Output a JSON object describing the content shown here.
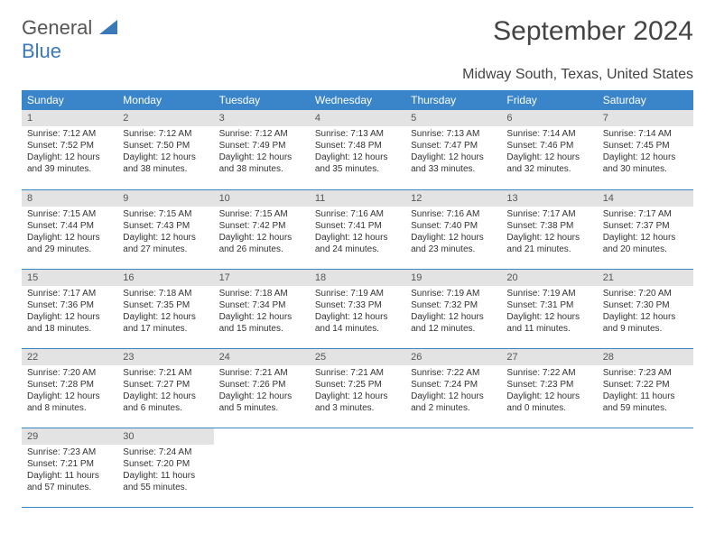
{
  "logo": {
    "line1": "General",
    "line2": "Blue"
  },
  "title": "September 2024",
  "location": "Midway South, Texas, United States",
  "colors": {
    "header_bg": "#3a85c9",
    "header_text": "#ffffff",
    "daynum_bg": "#e3e3e3",
    "row_border": "#3a85c9",
    "body_text": "#333333",
    "logo_blue": "#3a78b8",
    "logo_gray": "#555555",
    "page_bg": "#ffffff"
  },
  "weekdays": [
    "Sunday",
    "Monday",
    "Tuesday",
    "Wednesday",
    "Thursday",
    "Friday",
    "Saturday"
  ],
  "weeks": [
    [
      {
        "n": "1",
        "sunrise": "Sunrise: 7:12 AM",
        "sunset": "Sunset: 7:52 PM",
        "daylight": "Daylight: 12 hours and 39 minutes."
      },
      {
        "n": "2",
        "sunrise": "Sunrise: 7:12 AM",
        "sunset": "Sunset: 7:50 PM",
        "daylight": "Daylight: 12 hours and 38 minutes."
      },
      {
        "n": "3",
        "sunrise": "Sunrise: 7:12 AM",
        "sunset": "Sunset: 7:49 PM",
        "daylight": "Daylight: 12 hours and 38 minutes."
      },
      {
        "n": "4",
        "sunrise": "Sunrise: 7:13 AM",
        "sunset": "Sunset: 7:48 PM",
        "daylight": "Daylight: 12 hours and 35 minutes."
      },
      {
        "n": "5",
        "sunrise": "Sunrise: 7:13 AM",
        "sunset": "Sunset: 7:47 PM",
        "daylight": "Daylight: 12 hours and 33 minutes."
      },
      {
        "n": "6",
        "sunrise": "Sunrise: 7:14 AM",
        "sunset": "Sunset: 7:46 PM",
        "daylight": "Daylight: 12 hours and 32 minutes."
      },
      {
        "n": "7",
        "sunrise": "Sunrise: 7:14 AM",
        "sunset": "Sunset: 7:45 PM",
        "daylight": "Daylight: 12 hours and 30 minutes."
      }
    ],
    [
      {
        "n": "8",
        "sunrise": "Sunrise: 7:15 AM",
        "sunset": "Sunset: 7:44 PM",
        "daylight": "Daylight: 12 hours and 29 minutes."
      },
      {
        "n": "9",
        "sunrise": "Sunrise: 7:15 AM",
        "sunset": "Sunset: 7:43 PM",
        "daylight": "Daylight: 12 hours and 27 minutes."
      },
      {
        "n": "10",
        "sunrise": "Sunrise: 7:15 AM",
        "sunset": "Sunset: 7:42 PM",
        "daylight": "Daylight: 12 hours and 26 minutes."
      },
      {
        "n": "11",
        "sunrise": "Sunrise: 7:16 AM",
        "sunset": "Sunset: 7:41 PM",
        "daylight": "Daylight: 12 hours and 24 minutes."
      },
      {
        "n": "12",
        "sunrise": "Sunrise: 7:16 AM",
        "sunset": "Sunset: 7:40 PM",
        "daylight": "Daylight: 12 hours and 23 minutes."
      },
      {
        "n": "13",
        "sunrise": "Sunrise: 7:17 AM",
        "sunset": "Sunset: 7:38 PM",
        "daylight": "Daylight: 12 hours and 21 minutes."
      },
      {
        "n": "14",
        "sunrise": "Sunrise: 7:17 AM",
        "sunset": "Sunset: 7:37 PM",
        "daylight": "Daylight: 12 hours and 20 minutes."
      }
    ],
    [
      {
        "n": "15",
        "sunrise": "Sunrise: 7:17 AM",
        "sunset": "Sunset: 7:36 PM",
        "daylight": "Daylight: 12 hours and 18 minutes."
      },
      {
        "n": "16",
        "sunrise": "Sunrise: 7:18 AM",
        "sunset": "Sunset: 7:35 PM",
        "daylight": "Daylight: 12 hours and 17 minutes."
      },
      {
        "n": "17",
        "sunrise": "Sunrise: 7:18 AM",
        "sunset": "Sunset: 7:34 PM",
        "daylight": "Daylight: 12 hours and 15 minutes."
      },
      {
        "n": "18",
        "sunrise": "Sunrise: 7:19 AM",
        "sunset": "Sunset: 7:33 PM",
        "daylight": "Daylight: 12 hours and 14 minutes."
      },
      {
        "n": "19",
        "sunrise": "Sunrise: 7:19 AM",
        "sunset": "Sunset: 7:32 PM",
        "daylight": "Daylight: 12 hours and 12 minutes."
      },
      {
        "n": "20",
        "sunrise": "Sunrise: 7:19 AM",
        "sunset": "Sunset: 7:31 PM",
        "daylight": "Daylight: 12 hours and 11 minutes."
      },
      {
        "n": "21",
        "sunrise": "Sunrise: 7:20 AM",
        "sunset": "Sunset: 7:30 PM",
        "daylight": "Daylight: 12 hours and 9 minutes."
      }
    ],
    [
      {
        "n": "22",
        "sunrise": "Sunrise: 7:20 AM",
        "sunset": "Sunset: 7:28 PM",
        "daylight": "Daylight: 12 hours and 8 minutes."
      },
      {
        "n": "23",
        "sunrise": "Sunrise: 7:21 AM",
        "sunset": "Sunset: 7:27 PM",
        "daylight": "Daylight: 12 hours and 6 minutes."
      },
      {
        "n": "24",
        "sunrise": "Sunrise: 7:21 AM",
        "sunset": "Sunset: 7:26 PM",
        "daylight": "Daylight: 12 hours and 5 minutes."
      },
      {
        "n": "25",
        "sunrise": "Sunrise: 7:21 AM",
        "sunset": "Sunset: 7:25 PM",
        "daylight": "Daylight: 12 hours and 3 minutes."
      },
      {
        "n": "26",
        "sunrise": "Sunrise: 7:22 AM",
        "sunset": "Sunset: 7:24 PM",
        "daylight": "Daylight: 12 hours and 2 minutes."
      },
      {
        "n": "27",
        "sunrise": "Sunrise: 7:22 AM",
        "sunset": "Sunset: 7:23 PM",
        "daylight": "Daylight: 12 hours and 0 minutes."
      },
      {
        "n": "28",
        "sunrise": "Sunrise: 7:23 AM",
        "sunset": "Sunset: 7:22 PM",
        "daylight": "Daylight: 11 hours and 59 minutes."
      }
    ],
    [
      {
        "n": "29",
        "sunrise": "Sunrise: 7:23 AM",
        "sunset": "Sunset: 7:21 PM",
        "daylight": "Daylight: 11 hours and 57 minutes."
      },
      {
        "n": "30",
        "sunrise": "Sunrise: 7:24 AM",
        "sunset": "Sunset: 7:20 PM",
        "daylight": "Daylight: 11 hours and 55 minutes."
      },
      {
        "empty": true
      },
      {
        "empty": true
      },
      {
        "empty": true
      },
      {
        "empty": true
      },
      {
        "empty": true
      }
    ]
  ]
}
